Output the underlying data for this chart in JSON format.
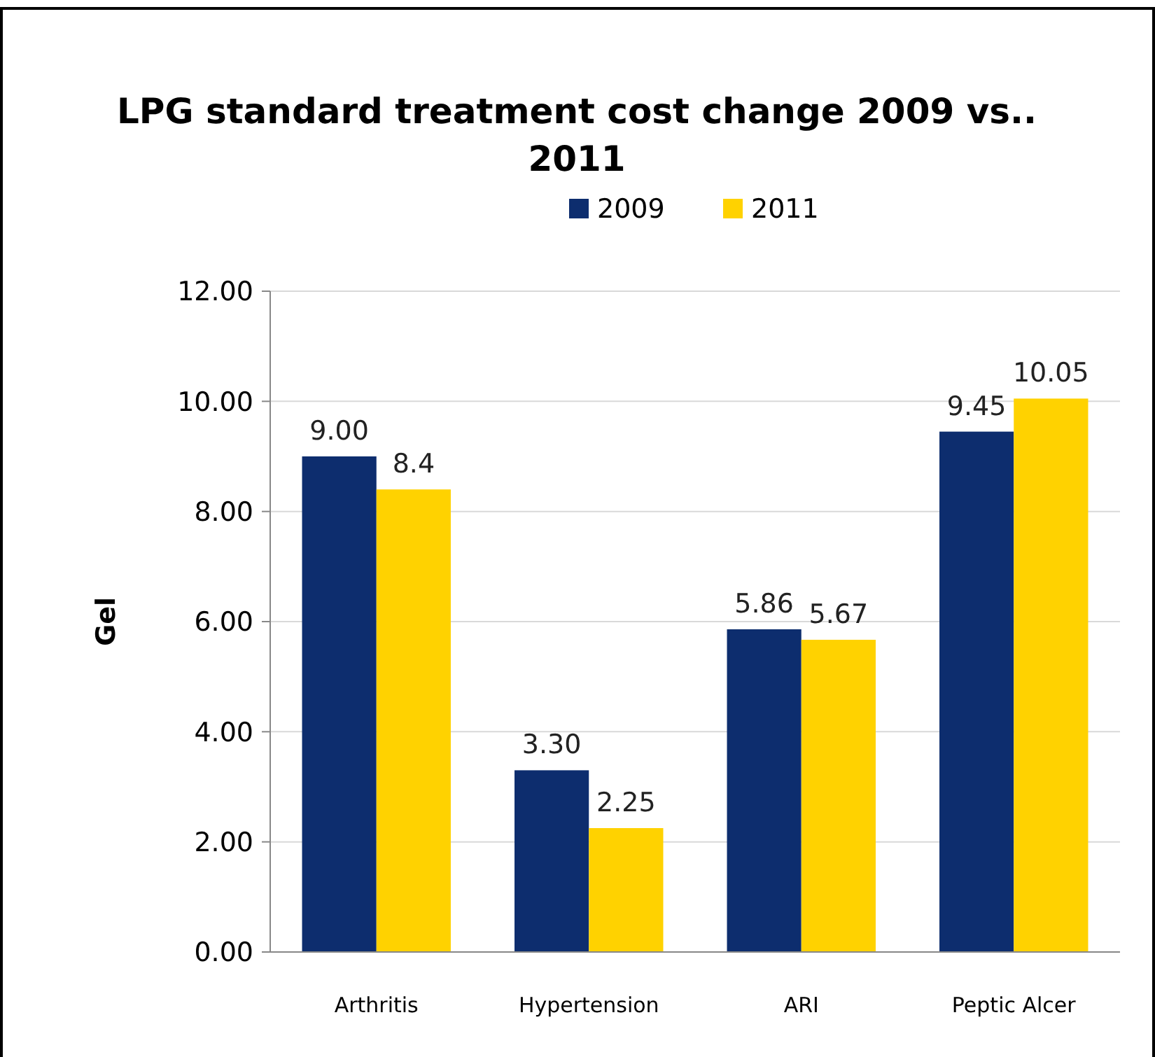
{
  "chart_data": {
    "type": "bar",
    "title": "LPG standard treatment cost change 2009 vs.. 2011",
    "ylabel": "Gel",
    "categories": [
      "Arthritis",
      "Hypertension",
      "ARI",
      "Peptic Alcer"
    ],
    "series": [
      {
        "name": "2009",
        "color": "#0d2d6e",
        "values": [
          9.0,
          3.3,
          5.86,
          9.45
        ],
        "value_labels": [
          "9.00",
          "3.30",
          "5.86",
          "9.45"
        ]
      },
      {
        "name": "2011",
        "color": "#ffd200",
        "values": [
          8.4,
          2.25,
          5.67,
          10.05
        ],
        "value_labels": [
          "8.4",
          "2.25",
          "5.67",
          "10.05"
        ]
      }
    ],
    "ylim": [
      0,
      12
    ],
    "yticks": [
      {
        "value": 0,
        "label": "0.00"
      },
      {
        "value": 2,
        "label": "2.00"
      },
      {
        "value": 4,
        "label": "4.00"
      },
      {
        "value": 6,
        "label": "6.00"
      },
      {
        "value": 8,
        "label": "8.00"
      },
      {
        "value": 10,
        "label": "10.00"
      },
      {
        "value": 12,
        "label": "12.00"
      }
    ],
    "grid": "y",
    "legend": "top"
  }
}
